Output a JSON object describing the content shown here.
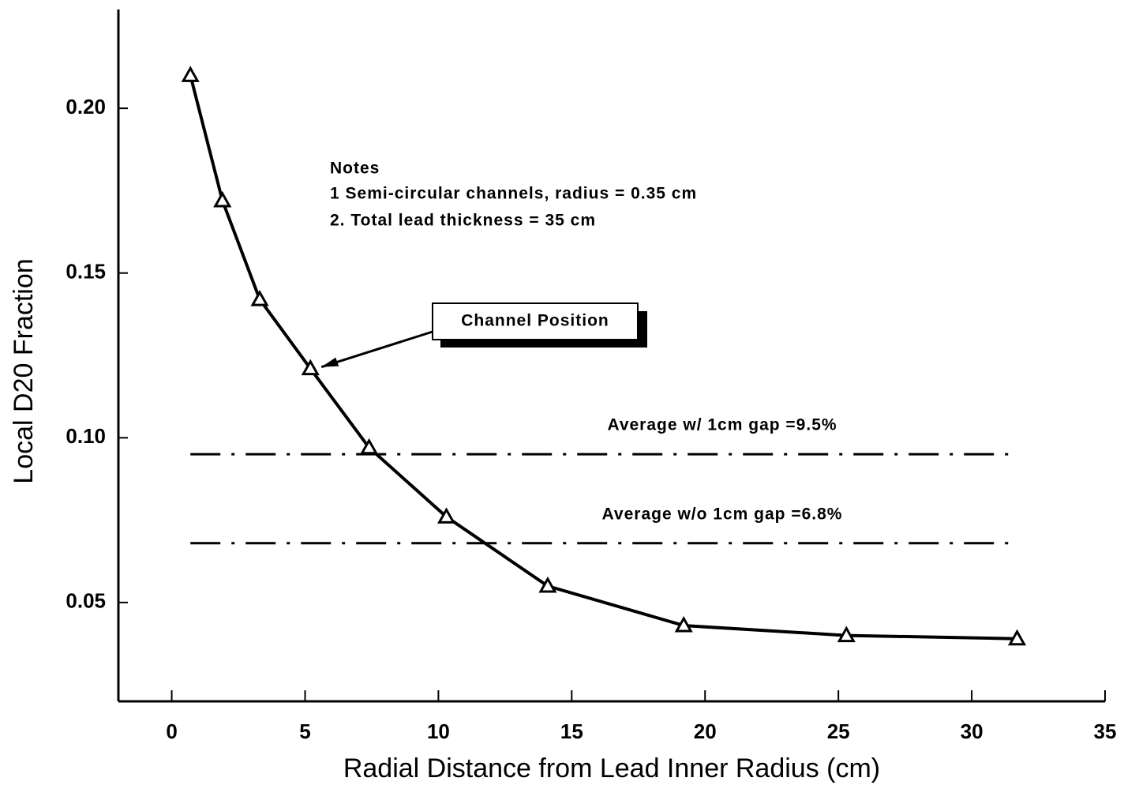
{
  "chart_data": {
    "type": "line",
    "x_label": "Radial Distance from Lead Inner Radius (cm)",
    "y_label": "Local D20 Fraction",
    "x": [
      0.7,
      1.9,
      3.3,
      5.2,
      7.4,
      10.3,
      14.1,
      19.2,
      25.3,
      31.7
    ],
    "series": [
      {
        "name": "Local D20 Fraction",
        "color": "#000000",
        "values": [
          0.21,
          0.172,
          0.142,
          0.121,
          0.097,
          0.076,
          0.055,
          0.043,
          0.04,
          0.039
        ]
      }
    ],
    "xlim": [
      -2,
      35
    ],
    "ylim": [
      0.02,
      0.23
    ],
    "xticks": [
      0,
      5,
      10,
      15,
      20,
      25,
      30,
      35
    ],
    "yticks": [
      {
        "value": 0.2,
        "label": "0.20"
      },
      0.15,
      {
        "value": 0.1,
        "label": "0.10"
      },
      0.05
    ],
    "reference_lines": [
      {
        "label": "Average w/ 1cm gap =9.5%",
        "value": 0.095
      },
      {
        "label": "Average w/o 1cm gap =6.8%",
        "value": 0.068
      }
    ],
    "notes": [
      "Notes",
      "1  Semi-circular channels, radius = 0.35 cm",
      "2. Total lead thickness = 35 cm"
    ],
    "callout": "Channel Position"
  }
}
